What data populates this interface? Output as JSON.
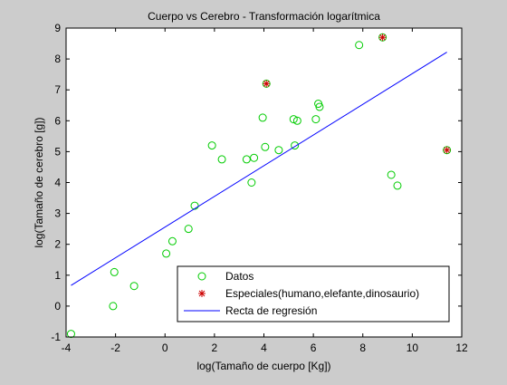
{
  "chart_data": {
    "type": "scatter",
    "title": "Cuerpo vs Cerebro - Transformación logarítmica",
    "xlabel": "log(Tamaño de cuerpo [Kg])",
    "ylabel": "log(Tamaño de cerebro [g])",
    "xlim": [
      -4,
      12
    ],
    "ylim": [
      -1,
      9
    ],
    "xticks": [
      "-4",
      "-2",
      "0",
      "2",
      "4",
      "6",
      "8",
      "10",
      "12"
    ],
    "yticks": [
      "-1",
      "0",
      "1",
      "2",
      "3",
      "4",
      "5",
      "6",
      "7",
      "8",
      "9"
    ],
    "grid": false,
    "legend_position": "bottom-right",
    "legend": [
      "Datos",
      "Especiales(humano,elefante,dinosaurio)",
      "Recta de regresión"
    ],
    "series": [
      {
        "name": "Datos",
        "marker": "circle",
        "color": "#00cc00",
        "points": [
          [
            -3.8,
            -0.9
          ],
          [
            -2.1,
            0.0
          ],
          [
            -2.05,
            1.1
          ],
          [
            -1.25,
            0.65
          ],
          [
            0.05,
            1.7
          ],
          [
            0.3,
            2.1
          ],
          [
            0.95,
            2.5
          ],
          [
            1.2,
            3.25
          ],
          [
            1.9,
            5.2
          ],
          [
            2.3,
            4.75
          ],
          [
            3.3,
            4.75
          ],
          [
            3.5,
            4.0
          ],
          [
            3.6,
            4.8
          ],
          [
            3.95,
            6.1
          ],
          [
            4.05,
            5.15
          ],
          [
            4.1,
            7.2
          ],
          [
            4.6,
            5.05
          ],
          [
            5.2,
            6.05
          ],
          [
            5.25,
            5.2
          ],
          [
            5.35,
            6.0
          ],
          [
            6.1,
            6.05
          ],
          [
            6.2,
            6.55
          ],
          [
            6.25,
            6.45
          ],
          [
            7.85,
            8.45
          ],
          [
            8.8,
            8.7
          ],
          [
            9.15,
            4.25
          ],
          [
            9.4,
            3.9
          ],
          [
            11.4,
            5.05
          ]
        ]
      },
      {
        "name": "Especiales(humano,elefante,dinosaurio)",
        "marker": "star",
        "color": "#cc0000",
        "points": [
          [
            4.1,
            7.2
          ],
          [
            8.8,
            8.7
          ],
          [
            11.4,
            5.05
          ]
        ]
      },
      {
        "name": "Recta de regresión",
        "marker": "line",
        "color": "#0000ff",
        "points": [
          [
            -3.8,
            0.67
          ],
          [
            11.4,
            8.22
          ]
        ]
      }
    ]
  }
}
